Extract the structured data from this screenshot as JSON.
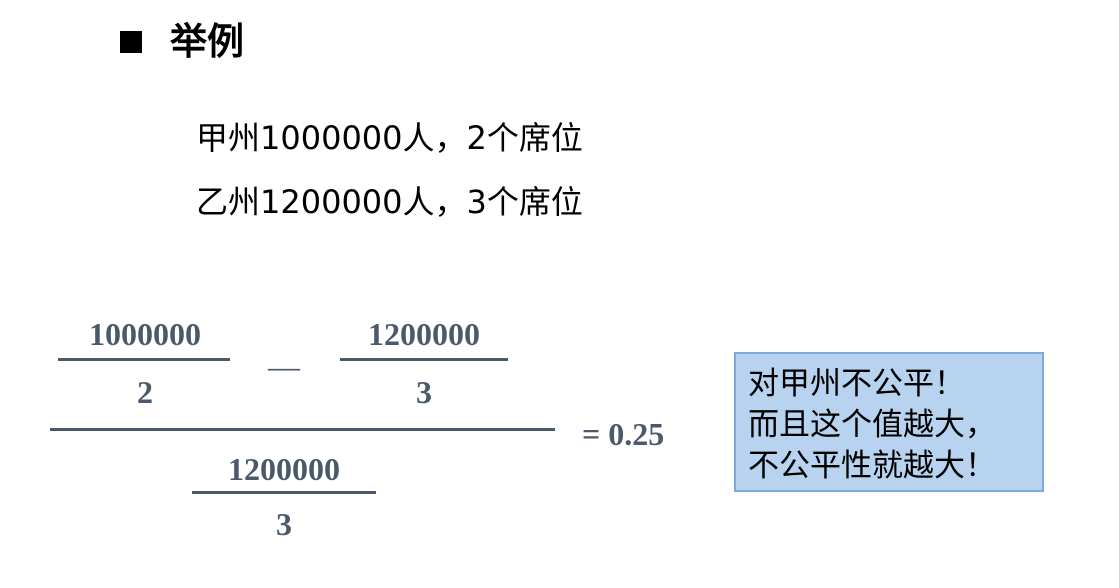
{
  "heading": {
    "title": "举例"
  },
  "lines": [
    "甲州1000000人，2个席位",
    "乙州1200000人，3个席位"
  ],
  "formula": {
    "frac1_num": "1000000",
    "frac1_den": "2",
    "minus": "—",
    "frac2_num": "1200000",
    "frac2_den": "3",
    "outer_den_num": "1200000",
    "outer_den_den": "3",
    "result": "= 0.25"
  },
  "callout": {
    "lines": [
      "对甲州不公平！",
      "而且这个值越大，",
      "不公平性就越大！"
    ]
  }
}
